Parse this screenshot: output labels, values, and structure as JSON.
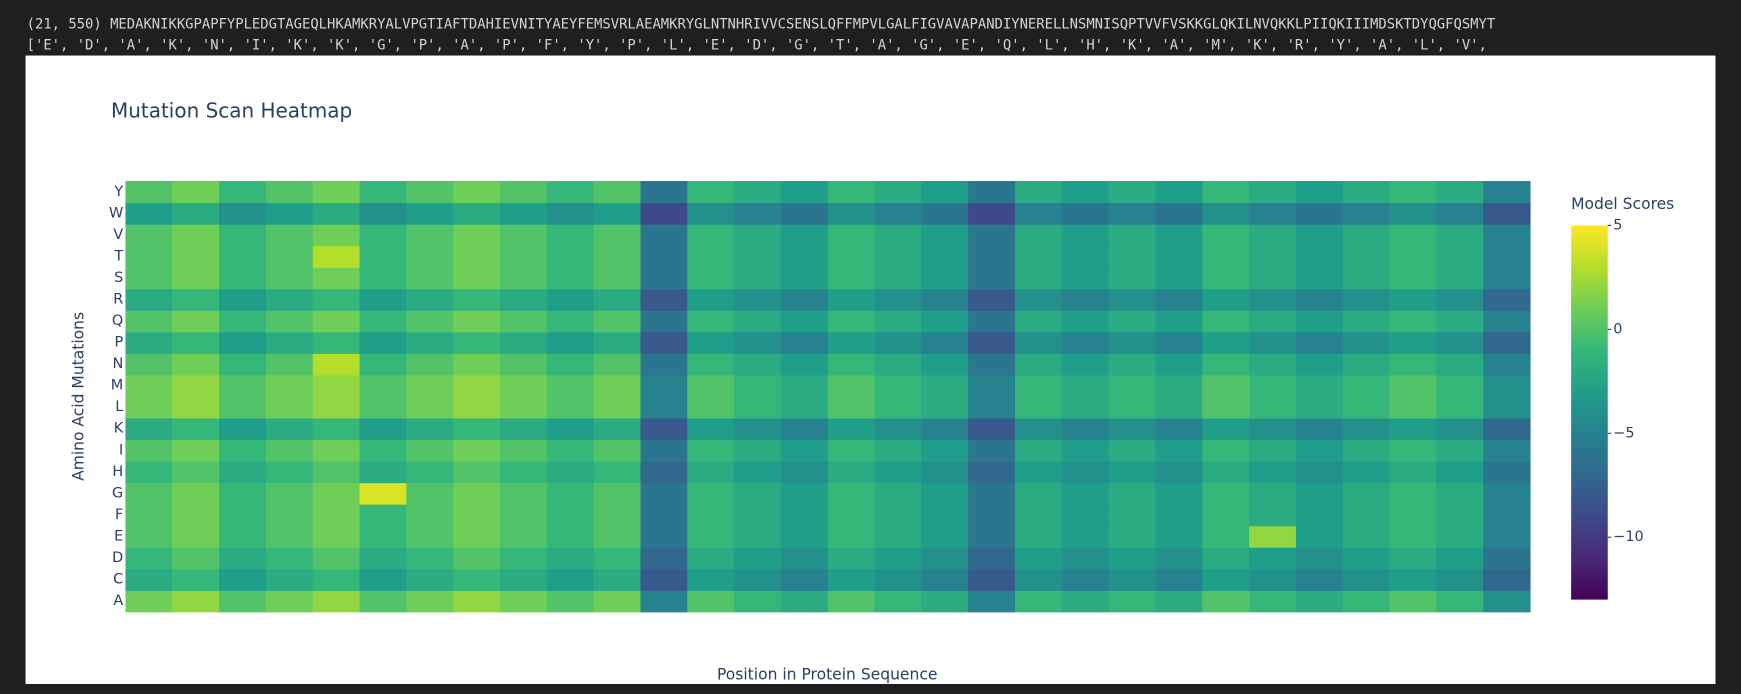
{
  "output": {
    "shape_line": "(21, 550) MEDAKNIKKGPAPFYPLEDGTAGEQLHKAMKRYALVPGTIAFTDAHIEVNITYAEYFEMSVRLAEAMKRYGLNTNHRIVVCSENSLQFFMPVLGALFIGVAVAPANDIYNERELLNSMNISQPTVVFVSKKGLQKILNVQKKLPIIQKIIIMDSKTDYQGFQSMYT",
    "list_line": "['E', 'D', 'A', 'K', 'N', 'I', 'K', 'K', 'G', 'P', 'A', 'P', 'F', 'Y', 'P', 'L', 'E', 'D', 'G', 'T', 'A', 'G', 'E', 'Q', 'L', 'H', 'K', 'A', 'M', 'K', 'R', 'Y', 'A', 'L', 'V',"
  },
  "chart_data": {
    "type": "heatmap",
    "title": "Mutation Scan Heatmap",
    "x_label": "Position in Protein Sequence",
    "y_label": "Amino Acid Mutations",
    "colorbar_title": "Model Scores",
    "colorscale": "viridis",
    "y": [
      "A",
      "C",
      "D",
      "E",
      "F",
      "G",
      "H",
      "I",
      "K",
      "L",
      "M",
      "N",
      "P",
      "Q",
      "R",
      "S",
      "T",
      "V",
      "W",
      "Y"
    ],
    "zlim": [
      -13,
      5
    ],
    "colorbar_ticks": [
      5,
      0,
      {
        "value": -5,
        "label": "−5"
      },
      {
        "value": -10,
        "label": "−10"
      }
    ],
    "z": [
      [
        1,
        2,
        0,
        1,
        2,
        0,
        1,
        2,
        1,
        0,
        1,
        -5,
        0,
        -1,
        -2,
        0,
        -1,
        -2,
        -5,
        -1,
        -2,
        -1,
        -2,
        0,
        -1,
        -2,
        -1,
        0,
        -1,
        -4
      ],
      [
        -2,
        -1,
        -3,
        -2,
        -1,
        -3,
        -2,
        -1,
        -2,
        -3,
        -2,
        -8,
        -3,
        -4,
        -5,
        -3,
        -4,
        -5,
        -8,
        -4,
        -5,
        -4,
        -5,
        -3,
        -4,
        -5,
        -4,
        -3,
        -4,
        -7
      ],
      [
        -1,
        0,
        -2,
        -1,
        0,
        -2,
        -1,
        0,
        -1,
        -2,
        -1,
        -7,
        -2,
        -3,
        -4,
        -2,
        -3,
        -4,
        -7,
        -3,
        -4,
        -3,
        -4,
        -2,
        -3,
        -4,
        -3,
        -2,
        -3,
        -6
      ],
      [
        0,
        1,
        -1,
        0,
        1,
        -1,
        0,
        1,
        0,
        -1,
        0,
        -6,
        -1,
        -2,
        -3,
        -1,
        -2,
        -3,
        -6,
        -2,
        -3,
        -2,
        -3,
        -1,
        2,
        -3,
        -2,
        -1,
        -2,
        -5
      ],
      [
        0,
        1,
        -1,
        0,
        1,
        -1,
        0,
        1,
        0,
        -1,
        0,
        -6,
        -1,
        -2,
        -3,
        -1,
        -2,
        -3,
        -6,
        -2,
        -3,
        -2,
        -3,
        -1,
        -2,
        -3,
        -2,
        -1,
        -2,
        -5
      ],
      [
        0,
        1,
        -1,
        0,
        1,
        4,
        0,
        1,
        0,
        -1,
        0,
        -6,
        -1,
        -2,
        -3,
        -1,
        -2,
        -3,
        -6,
        -2,
        -3,
        -2,
        -3,
        -1,
        -2,
        -3,
        -2,
        -1,
        -2,
        -5
      ],
      [
        -1,
        0,
        -2,
        -1,
        0,
        -2,
        -1,
        0,
        -1,
        -2,
        -1,
        -7,
        -2,
        -3,
        -4,
        -2,
        -3,
        -4,
        -7,
        -3,
        -4,
        -3,
        -4,
        -2,
        -3,
        -4,
        -3,
        -2,
        -3,
        -6
      ],
      [
        0,
        1,
        -1,
        0,
        1,
        -1,
        0,
        1,
        0,
        -1,
        0,
        -6,
        -1,
        -2,
        -3,
        -1,
        -2,
        -3,
        -6,
        -2,
        -3,
        -2,
        -3,
        -1,
        -2,
        -3,
        -2,
        -1,
        -2,
        -5
      ],
      [
        -2,
        -1,
        -3,
        -2,
        -1,
        -3,
        -2,
        -1,
        -2,
        -3,
        -2,
        -8,
        -3,
        -4,
        -5,
        -3,
        -4,
        -5,
        -8,
        -4,
        -5,
        -4,
        -5,
        -3,
        -4,
        -5,
        -4,
        -3,
        -4,
        -7
      ],
      [
        1,
        2,
        0,
        1,
        2,
        0,
        1,
        2,
        1,
        0,
        1,
        -5,
        0,
        -1,
        -2,
        0,
        -1,
        -2,
        -5,
        -1,
        -2,
        -1,
        -2,
        0,
        -1,
        -2,
        -1,
        0,
        -1,
        -4
      ],
      [
        1,
        2,
        0,
        1,
        2,
        0,
        1,
        2,
        1,
        0,
        1,
        -5,
        0,
        -1,
        -2,
        0,
        -1,
        -2,
        -5,
        -1,
        -2,
        -1,
        -2,
        0,
        -1,
        -2,
        -1,
        0,
        -1,
        -4
      ],
      [
        0,
        1,
        -1,
        0,
        3,
        -1,
        0,
        1,
        0,
        -1,
        0,
        -6,
        -1,
        -2,
        -3,
        -1,
        -2,
        -3,
        -6,
        -2,
        -3,
        -2,
        -3,
        -1,
        -2,
        -3,
        -2,
        -1,
        -2,
        -5
      ],
      [
        -2,
        -1,
        -3,
        -2,
        -1,
        -3,
        -2,
        -1,
        -2,
        -3,
        -2,
        -8,
        -3,
        -4,
        -5,
        -3,
        -4,
        -5,
        -8,
        -4,
        -5,
        -4,
        -5,
        -3,
        -4,
        -5,
        -4,
        -3,
        -4,
        -7
      ],
      [
        0,
        1,
        -1,
        0,
        1,
        -1,
        0,
        1,
        0,
        -1,
        0,
        -6,
        -1,
        -2,
        -3,
        -1,
        -2,
        -3,
        -6,
        -2,
        -3,
        -2,
        -3,
        -1,
        -2,
        -3,
        -2,
        -1,
        -2,
        -5
      ],
      [
        -2,
        -1,
        -3,
        -2,
        -1,
        -3,
        -2,
        -1,
        -2,
        -3,
        -2,
        -8,
        -3,
        -4,
        -5,
        -3,
        -4,
        -5,
        -8,
        -4,
        -5,
        -4,
        -5,
        -3,
        -4,
        -5,
        -4,
        -3,
        -4,
        -7
      ],
      [
        0,
        1,
        -1,
        0,
        1,
        -1,
        0,
        1,
        0,
        -1,
        0,
        -6,
        -1,
        -2,
        -3,
        -1,
        -2,
        -3,
        -6,
        -2,
        -3,
        -2,
        -3,
        -1,
        -2,
        -3,
        -2,
        -1,
        -2,
        -5
      ],
      [
        0,
        1,
        -1,
        0,
        3,
        -1,
        0,
        1,
        0,
        -1,
        0,
        -6,
        -1,
        -2,
        -3,
        -1,
        -2,
        -3,
        -6,
        -2,
        -3,
        -2,
        -3,
        -1,
        -2,
        -3,
        -2,
        -1,
        -2,
        -5
      ],
      [
        0,
        1,
        -1,
        0,
        1,
        -1,
        0,
        1,
        0,
        -1,
        0,
        -6,
        -1,
        -2,
        -3,
        -1,
        -2,
        -3,
        -6,
        -2,
        -3,
        -2,
        -3,
        -1,
        -2,
        -3,
        -2,
        -1,
        -2,
        -5
      ],
      [
        -3,
        -2,
        -4,
        -3,
        -2,
        -4,
        -3,
        -2,
        -3,
        -4,
        -3,
        -9,
        -4,
        -5,
        -6,
        -4,
        -5,
        -6,
        -9,
        -5,
        -6,
        -5,
        -6,
        -4,
        -5,
        -6,
        -5,
        -4,
        -5,
        -8
      ],
      [
        0,
        1,
        -1,
        0,
        1,
        -1,
        0,
        1,
        0,
        -1,
        0,
        -6,
        -1,
        -2,
        -3,
        -1,
        -2,
        -3,
        -6,
        -2,
        -3,
        -2,
        -3,
        -1,
        -2,
        -3,
        -2,
        -1,
        -2,
        -5
      ]
    ]
  }
}
